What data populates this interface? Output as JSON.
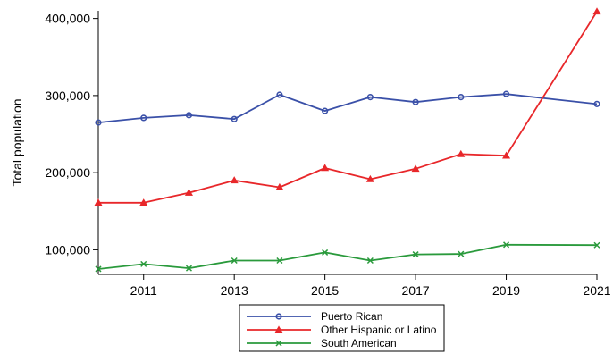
{
  "chart_data": {
    "type": "line",
    "xlabel": "",
    "ylabel": "Total population",
    "xlim": [
      2010,
      2021
    ],
    "ylim": [
      68000,
      410000
    ],
    "x_ticks": [
      2011,
      2013,
      2015,
      2017,
      2019,
      2021
    ],
    "y_ticks": [
      100000,
      200000,
      300000,
      400000
    ],
    "y_tick_labels": [
      "100,000",
      "200,000",
      "300,000",
      "400,000"
    ],
    "grid": false,
    "legend_position": "bottom",
    "x": [
      2010,
      2011,
      2012,
      2013,
      2014,
      2015,
      2016,
      2017,
      2018,
      2019,
      2021
    ],
    "series": [
      {
        "name": "Puerto Rican",
        "color": "#3a50a8",
        "marker": "circle",
        "values": [
          265000,
          271000,
          274500,
          269500,
          301000,
          280000,
          298000,
          291500,
          298000,
          302000,
          289000
        ]
      },
      {
        "name": "Other Hispanic or Latino",
        "color": "#e8272a",
        "marker": "triangle",
        "values": [
          161000,
          161000,
          174000,
          190000,
          181000,
          206000,
          191500,
          205000,
          224000,
          222000,
          409000
        ]
      },
      {
        "name": "South American",
        "color": "#2a9a3c",
        "marker": "x",
        "values": [
          75000,
          81500,
          76000,
          86000,
          86000,
          96500,
          86000,
          94000,
          94500,
          106500,
          106000
        ]
      }
    ]
  }
}
